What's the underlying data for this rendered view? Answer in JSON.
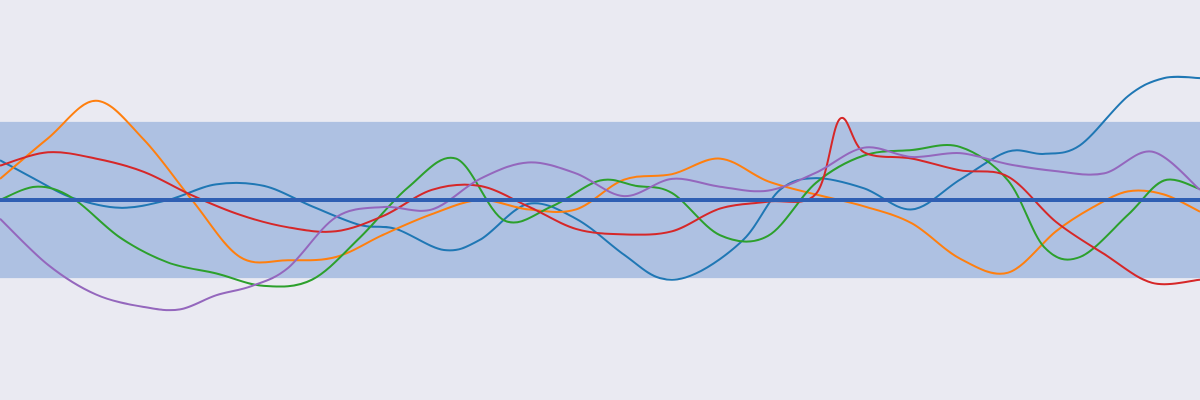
{
  "chart_data": {
    "type": "line",
    "title": "",
    "xlabel": "",
    "ylabel": "",
    "xlim": [
      0,
      1
    ],
    "ylim": [
      -2.56,
      2.56
    ],
    "grid": false,
    "legend": "none",
    "mean": 0,
    "band": [
      -1,
      1
    ],
    "colors": {
      "background": "#eaeaf2",
      "band": "#aec1e2",
      "mean": "#2f5fb3"
    },
    "series": [
      {
        "color": "#1f77b4",
        "x": [
          0,
          0.03,
          0.06,
          0.1,
          0.14,
          0.18,
          0.22,
          0.26,
          0.3,
          0.33,
          0.37,
          0.4,
          0.44,
          0.48,
          0.52,
          0.55,
          0.58,
          0.62,
          0.65,
          0.68,
          0.72,
          0.76,
          0.8,
          0.84,
          0.87,
          0.9,
          0.94,
          0.97,
          1
        ],
        "y": [
          0.51,
          0.26,
          0.03,
          -0.1,
          0.0,
          0.2,
          0.18,
          -0.08,
          -0.32,
          -0.37,
          -0.64,
          -0.51,
          -0.05,
          -0.24,
          -0.7,
          -1.0,
          -0.94,
          -0.5,
          0.13,
          0.28,
          0.15,
          -0.12,
          0.26,
          0.62,
          0.59,
          0.7,
          1.33,
          1.56,
          1.56
        ]
      },
      {
        "color": "#ff7f0e",
        "x": [
          0,
          0.04,
          0.08,
          0.12,
          0.16,
          0.2,
          0.24,
          0.28,
          0.32,
          0.36,
          0.4,
          0.44,
          0.48,
          0.52,
          0.56,
          0.6,
          0.64,
          0.68,
          0.72,
          0.76,
          0.8,
          0.84,
          0.88,
          0.91,
          0.94,
          0.97,
          1
        ],
        "y": [
          0.27,
          0.79,
          1.27,
          0.77,
          0.0,
          -0.73,
          -0.77,
          -0.73,
          -0.44,
          -0.18,
          0.0,
          -0.12,
          -0.12,
          0.26,
          0.33,
          0.53,
          0.24,
          0.07,
          -0.08,
          -0.3,
          -0.75,
          -0.93,
          -0.4,
          -0.1,
          0.11,
          0.07,
          -0.15
        ]
      },
      {
        "color": "#2ca02c",
        "x": [
          0,
          0.03,
          0.06,
          0.1,
          0.14,
          0.18,
          0.22,
          0.26,
          0.3,
          0.34,
          0.38,
          0.42,
          0.46,
          0.5,
          0.53,
          0.56,
          0.6,
          0.64,
          0.68,
          0.72,
          0.76,
          0.8,
          0.84,
          0.87,
          0.9,
          0.94,
          0.97,
          1
        ],
        "y": [
          0.0,
          0.17,
          0.03,
          -0.48,
          -0.8,
          -0.94,
          -1.1,
          -1.02,
          -0.48,
          0.16,
          0.53,
          -0.26,
          -0.08,
          0.25,
          0.18,
          0.09,
          -0.45,
          -0.46,
          0.22,
          0.57,
          0.64,
          0.68,
          0.25,
          -0.6,
          -0.73,
          -0.19,
          0.25,
          0.14
        ]
      },
      {
        "color": "#d62728",
        "x": [
          0,
          0.04,
          0.08,
          0.12,
          0.16,
          0.2,
          0.24,
          0.28,
          0.32,
          0.36,
          0.4,
          0.44,
          0.48,
          0.52,
          0.56,
          0.6,
          0.64,
          0.68,
          0.7,
          0.72,
          0.76,
          0.8,
          0.84,
          0.88,
          0.92,
          0.96,
          1
        ],
        "y": [
          0.44,
          0.61,
          0.53,
          0.36,
          0.06,
          -0.19,
          -0.35,
          -0.4,
          -0.2,
          0.13,
          0.18,
          -0.08,
          -0.37,
          -0.44,
          -0.4,
          -0.11,
          -0.02,
          0.08,
          1.04,
          0.61,
          0.53,
          0.38,
          0.3,
          -0.28,
          -0.69,
          -1.06,
          -1.02
        ]
      },
      {
        "color": "#9467bd",
        "x": [
          0,
          0.04,
          0.08,
          0.12,
          0.15,
          0.18,
          0.21,
          0.24,
          0.28,
          0.32,
          0.36,
          0.4,
          0.44,
          0.48,
          0.52,
          0.56,
          0.6,
          0.64,
          0.68,
          0.72,
          0.76,
          0.8,
          0.84,
          0.88,
          0.92,
          0.96,
          1
        ],
        "y": [
          -0.24,
          -0.83,
          -1.21,
          -1.37,
          -1.4,
          -1.22,
          -1.1,
          -0.87,
          -0.22,
          -0.09,
          -0.12,
          0.27,
          0.48,
          0.34,
          0.05,
          0.27,
          0.17,
          0.12,
          0.35,
          0.67,
          0.55,
          0.6,
          0.46,
          0.37,
          0.34,
          0.62,
          0.13
        ]
      }
    ]
  }
}
